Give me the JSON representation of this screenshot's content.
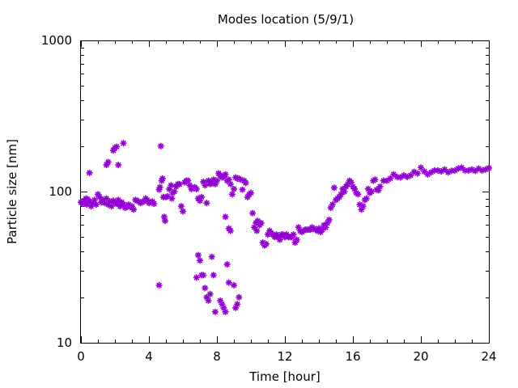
{
  "chart_data": {
    "type": "scatter",
    "title": "Modes location (5/9/1)",
    "xlabel": "Time [hour]",
    "ylabel": "Particle size [nm]",
    "x_scale": "linear",
    "y_scale": "log",
    "xlim": [
      0,
      24
    ],
    "ylim": [
      10,
      1000
    ],
    "x_ticks": [
      0,
      4,
      8,
      12,
      16,
      20,
      24
    ],
    "x_minor_step": 1,
    "y_ticks": [
      10,
      100,
      1000
    ],
    "grid": false,
    "legend": "none",
    "marker_color": "#9400D3",
    "marker": "asterisk",
    "series": [
      {
        "points": [
          [
            0.0,
            85
          ],
          [
            0.1,
            83
          ],
          [
            0.2,
            87
          ],
          [
            0.3,
            90
          ],
          [
            0.35,
            82
          ],
          [
            0.4,
            89
          ],
          [
            0.5,
            86
          ],
          [
            0.6,
            80
          ],
          [
            0.7,
            84
          ],
          [
            0.8,
            88
          ],
          [
            0.9,
            82
          ],
          [
            1.0,
            96
          ],
          [
            1.1,
            92
          ],
          [
            1.2,
            85
          ],
          [
            1.3,
            88
          ],
          [
            1.4,
            84
          ],
          [
            1.5,
            90
          ],
          [
            1.6,
            82
          ],
          [
            1.7,
            86
          ],
          [
            1.8,
            80
          ],
          [
            1.9,
            87
          ],
          [
            2.0,
            84
          ],
          [
            2.1,
            83
          ],
          [
            2.2,
            88
          ],
          [
            2.3,
            80
          ],
          [
            2.4,
            85
          ],
          [
            2.5,
            82
          ],
          [
            2.6,
            78
          ],
          [
            2.7,
            80
          ],
          [
            2.8,
            82
          ],
          [
            2.9,
            79
          ],
          [
            3.0,
            80
          ],
          [
            3.1,
            76
          ],
          [
            3.2,
            88
          ],
          [
            3.3,
            87
          ],
          [
            3.4,
            86
          ],
          [
            3.5,
            84
          ],
          [
            3.6,
            85
          ],
          [
            3.7,
            86
          ],
          [
            3.8,
            90
          ],
          [
            3.9,
            88
          ],
          [
            4.0,
            84
          ],
          [
            4.1,
            85
          ],
          [
            4.2,
            86
          ],
          [
            4.3,
            83
          ],
          [
            0.5,
            133
          ],
          [
            1.5,
            150
          ],
          [
            1.6,
            157
          ],
          [
            1.9,
            187
          ],
          [
            2.0,
            195
          ],
          [
            2.1,
            198
          ],
          [
            2.2,
            150
          ],
          [
            2.5,
            209
          ],
          [
            4.6,
            103
          ],
          [
            4.65,
            107
          ],
          [
            4.7,
            200
          ],
          [
            4.75,
            118
          ],
          [
            4.8,
            122
          ],
          [
            4.85,
            92
          ],
          [
            4.9,
            68
          ],
          [
            4.95,
            64
          ],
          [
            5.0,
            92
          ],
          [
            5.1,
            93
          ],
          [
            5.2,
            104
          ],
          [
            5.3,
            110
          ],
          [
            5.35,
            90
          ],
          [
            5.4,
            98
          ],
          [
            5.5,
            100
          ],
          [
            5.6,
            108
          ],
          [
            5.7,
            112
          ],
          [
            5.8,
            112
          ],
          [
            5.9,
            80
          ],
          [
            6.0,
            74
          ],
          [
            6.1,
            115
          ],
          [
            6.2,
            118
          ],
          [
            6.3,
            118
          ],
          [
            6.4,
            110
          ],
          [
            6.5,
            104
          ],
          [
            6.6,
            106
          ],
          [
            6.7,
            107
          ],
          [
            6.8,
            104
          ],
          [
            6.9,
            90
          ],
          [
            7.0,
            87
          ],
          [
            7.1,
            92
          ],
          [
            7.2,
            116
          ],
          [
            7.3,
            110
          ],
          [
            7.4,
            84
          ],
          [
            7.5,
            118
          ],
          [
            7.6,
            112
          ],
          [
            7.7,
            114
          ],
          [
            7.8,
            120
          ],
          [
            7.9,
            112
          ],
          [
            8.0,
            118
          ],
          [
            8.1,
            132
          ],
          [
            8.2,
            128
          ],
          [
            8.3,
            124
          ],
          [
            8.4,
            125
          ],
          [
            8.5,
            130
          ],
          [
            8.6,
            118
          ],
          [
            8.7,
            120
          ],
          [
            8.8,
            112
          ],
          [
            8.9,
            96
          ],
          [
            9.0,
            104
          ],
          [
            9.1,
            124
          ],
          [
            9.2,
            122
          ],
          [
            9.3,
            122
          ],
          [
            9.4,
            120
          ],
          [
            9.5,
            103
          ],
          [
            9.6,
            118
          ],
          [
            9.7,
            114
          ],
          [
            4.6,
            24
          ],
          [
            6.8,
            27
          ],
          [
            6.9,
            38
          ],
          [
            7.0,
            35
          ],
          [
            7.1,
            28
          ],
          [
            7.2,
            28
          ],
          [
            7.3,
            23
          ],
          [
            7.4,
            20
          ],
          [
            7.5,
            19
          ],
          [
            7.6,
            21
          ],
          [
            7.7,
            37
          ],
          [
            7.8,
            28
          ],
          [
            7.9,
            16
          ],
          [
            8.2,
            19
          ],
          [
            8.3,
            18
          ],
          [
            8.4,
            17
          ],
          [
            8.5,
            16
          ],
          [
            8.6,
            33
          ],
          [
            8.7,
            25
          ],
          [
            9.0,
            24
          ],
          [
            9.1,
            17
          ],
          [
            9.2,
            18
          ],
          [
            9.3,
            20
          ],
          [
            8.5,
            68
          ],
          [
            8.7,
            57
          ],
          [
            8.8,
            55
          ],
          [
            9.8,
            92
          ],
          [
            9.9,
            96
          ],
          [
            10.0,
            98
          ],
          [
            10.1,
            72
          ],
          [
            10.2,
            58
          ],
          [
            10.3,
            62
          ],
          [
            10.35,
            55
          ],
          [
            10.4,
            64
          ],
          [
            10.5,
            60
          ],
          [
            10.6,
            62
          ],
          [
            10.7,
            46
          ],
          [
            10.8,
            44
          ],
          [
            10.9,
            45
          ],
          [
            11.0,
            52
          ],
          [
            11.1,
            55
          ],
          [
            11.2,
            53
          ],
          [
            11.3,
            52
          ],
          [
            11.4,
            50
          ],
          [
            11.5,
            52
          ],
          [
            11.6,
            50
          ],
          [
            11.7,
            48
          ],
          [
            11.8,
            52
          ],
          [
            11.9,
            52
          ],
          [
            12.0,
            50
          ],
          [
            12.1,
            52
          ],
          [
            12.2,
            50
          ],
          [
            12.3,
            50
          ],
          [
            12.4,
            50
          ],
          [
            12.5,
            52
          ],
          [
            12.6,
            46
          ],
          [
            12.7,
            48
          ],
          [
            12.8,
            58
          ],
          [
            12.9,
            55
          ],
          [
            13.0,
            54
          ],
          [
            13.1,
            55
          ],
          [
            13.2,
            56
          ],
          [
            13.3,
            56
          ],
          [
            13.4,
            56
          ],
          [
            13.5,
            56
          ],
          [
            13.6,
            58
          ],
          [
            13.7,
            57
          ],
          [
            13.8,
            56
          ],
          [
            13.9,
            55
          ],
          [
            14.0,
            57
          ],
          [
            14.1,
            54
          ],
          [
            14.2,
            56
          ],
          [
            14.3,
            60
          ],
          [
            14.4,
            58
          ],
          [
            14.5,
            62
          ],
          [
            14.6,
            65
          ],
          [
            14.7,
            78
          ],
          [
            14.8,
            82
          ],
          [
            14.9,
            106
          ],
          [
            15.0,
            88
          ],
          [
            15.1,
            90
          ],
          [
            15.2,
            92
          ],
          [
            15.3,
            96
          ],
          [
            15.4,
            104
          ],
          [
            15.5,
            100
          ],
          [
            15.6,
            108
          ],
          [
            15.7,
            112
          ],
          [
            15.8,
            118
          ],
          [
            15.9,
            115
          ],
          [
            16.0,
            108
          ],
          [
            16.1,
            104
          ],
          [
            16.2,
            98
          ],
          [
            16.3,
            96
          ],
          [
            16.4,
            82
          ],
          [
            16.5,
            76
          ],
          [
            16.6,
            80
          ],
          [
            16.7,
            88
          ],
          [
            16.8,
            90
          ],
          [
            16.9,
            104
          ],
          [
            17.0,
            98
          ],
          [
            17.1,
            100
          ],
          [
            17.2,
            118
          ],
          [
            17.3,
            120
          ],
          [
            17.4,
            103
          ],
          [
            17.5,
            102
          ],
          [
            17.6,
            108
          ],
          [
            17.8,
            118
          ],
          [
            18.0,
            118
          ],
          [
            18.2,
            122
          ],
          [
            18.4,
            130
          ],
          [
            18.6,
            125
          ],
          [
            18.8,
            124
          ],
          [
            19.0,
            128
          ],
          [
            19.2,
            125
          ],
          [
            19.4,
            128
          ],
          [
            19.6,
            135
          ],
          [
            19.8,
            132
          ],
          [
            20.0,
            144
          ],
          [
            20.2,
            136
          ],
          [
            20.4,
            130
          ],
          [
            20.6,
            134
          ],
          [
            20.8,
            138
          ],
          [
            21.0,
            138
          ],
          [
            21.2,
            136
          ],
          [
            21.4,
            140
          ],
          [
            21.6,
            134
          ],
          [
            21.8,
            137
          ],
          [
            22.0,
            138
          ],
          [
            22.2,
            142
          ],
          [
            22.4,
            144
          ],
          [
            22.6,
            138
          ],
          [
            22.8,
            138
          ],
          [
            23.0,
            140
          ],
          [
            23.2,
            137
          ],
          [
            23.4,
            142
          ],
          [
            23.6,
            138
          ],
          [
            23.8,
            140
          ],
          [
            24.0,
            143
          ]
        ]
      }
    ]
  }
}
